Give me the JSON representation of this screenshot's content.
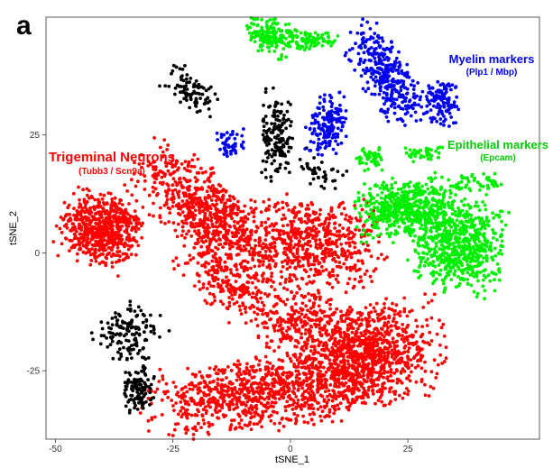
{
  "chart_data": {
    "type": "scatter",
    "panel_label": "a",
    "xlabel": "tSNE_1",
    "ylabel": "tSNE_2",
    "xlim": [
      -52,
      53
    ],
    "ylim": [
      -39.5,
      50
    ],
    "x_ticks": [
      -50,
      -25,
      0,
      25
    ],
    "y_ticks": [
      -25,
      0,
      25
    ],
    "grid": false,
    "colors": {
      "neurons": "#ff0000",
      "black": "#000000",
      "myelin": "#0000ee",
      "epithelial": "#00ee00"
    },
    "clusters": [
      {
        "group": "neurons",
        "n": 650,
        "cx": -40,
        "cy": 5,
        "sx": 4,
        "sy": 3.6,
        "rot": -25
      },
      {
        "group": "neurons",
        "n": 650,
        "cx": -18,
        "cy": 9,
        "sx": 8,
        "sy": 3.6,
        "rot": -40
      },
      {
        "group": "neurons",
        "n": 250,
        "cx": -13,
        "cy": -6,
        "sx": 6,
        "sy": 3,
        "rot": -40
      },
      {
        "group": "neurons",
        "n": 650,
        "cx": 4,
        "cy": 2,
        "sx": 7.5,
        "sy": 4.8,
        "rot": 0
      },
      {
        "group": "neurons",
        "n": 1100,
        "cx": 15,
        "cy": -22,
        "sx": 8,
        "sy": 5,
        "rot": 8
      },
      {
        "group": "neurons",
        "n": 850,
        "cx": -7,
        "cy": -30,
        "sx": 11,
        "sy": 3.6,
        "rot": 6
      },
      {
        "group": "neurons",
        "n": 200,
        "cx": 2,
        "cy": -14,
        "sx": 4.5,
        "sy": 3,
        "rot": 0
      },
      {
        "group": "black",
        "n": 140,
        "cx": -34,
        "cy": -17,
        "sx": 3.2,
        "sy": 3,
        "rot": -30
      },
      {
        "group": "black",
        "n": 110,
        "cx": -32.5,
        "cy": -29,
        "sx": 1.6,
        "sy": 2.4,
        "rot": 0
      },
      {
        "group": "black",
        "n": 90,
        "cx": -21,
        "cy": 34,
        "sx": 3,
        "sy": 1.8,
        "rot": -40
      },
      {
        "group": "black",
        "n": 160,
        "cx": -3,
        "cy": 25,
        "sx": 1.5,
        "sy": 4.5,
        "rot": 0
      },
      {
        "group": "black",
        "n": 40,
        "cx": 6,
        "cy": 17,
        "sx": 2.5,
        "sy": 1.5,
        "rot": -30
      },
      {
        "group": "myelin",
        "n": 50,
        "cx": -12.5,
        "cy": 23,
        "sx": 1.5,
        "sy": 2,
        "rot": 0
      },
      {
        "group": "myelin",
        "n": 170,
        "cx": 8,
        "cy": 27,
        "sx": 2,
        "sy": 3.3,
        "rot": -20
      },
      {
        "group": "myelin",
        "n": 330,
        "cx": 20,
        "cy": 38,
        "sx": 2.4,
        "sy": 5.5,
        "rot": 30
      },
      {
        "group": "myelin",
        "n": 120,
        "cx": 32,
        "cy": 32,
        "sx": 1.8,
        "sy": 2.5,
        "rot": 0
      },
      {
        "group": "epithelial",
        "n": 170,
        "cx": -4,
        "cy": 46,
        "sx": 3,
        "sy": 1.8,
        "rot": -20
      },
      {
        "group": "epithelial",
        "n": 80,
        "cx": 4,
        "cy": 45,
        "sx": 3,
        "sy": 0.9,
        "rot": 0
      },
      {
        "group": "epithelial",
        "n": 50,
        "cx": 17,
        "cy": 20,
        "sx": 1.3,
        "sy": 1.3,
        "rot": 0
      },
      {
        "group": "epithelial",
        "n": 40,
        "cx": 28,
        "cy": 21,
        "sx": 2.4,
        "sy": 0.8,
        "rot": 0
      },
      {
        "group": "epithelial",
        "n": 50,
        "cx": 40,
        "cy": 15,
        "sx": 3,
        "sy": 1.2,
        "rot": 0
      },
      {
        "group": "epithelial",
        "n": 550,
        "cx": 25,
        "cy": 9.5,
        "sx": 5,
        "sy": 3,
        "rot": 10
      },
      {
        "group": "epithelial",
        "n": 650,
        "cx": 36,
        "cy": 1.5,
        "sx": 4.5,
        "sy": 4.5,
        "rot": -10
      }
    ],
    "annotations": {
      "neurons_title": "Trigeminal Neurons",
      "neurons_sub": "(Tubb3 / Scn9a)",
      "myelin_title": "Myelin markers",
      "myelin_sub": "(Plp1 / Mbp)",
      "epithelial_title": "Epithelial markers",
      "epithelial_sub": "(Epcam)"
    }
  }
}
